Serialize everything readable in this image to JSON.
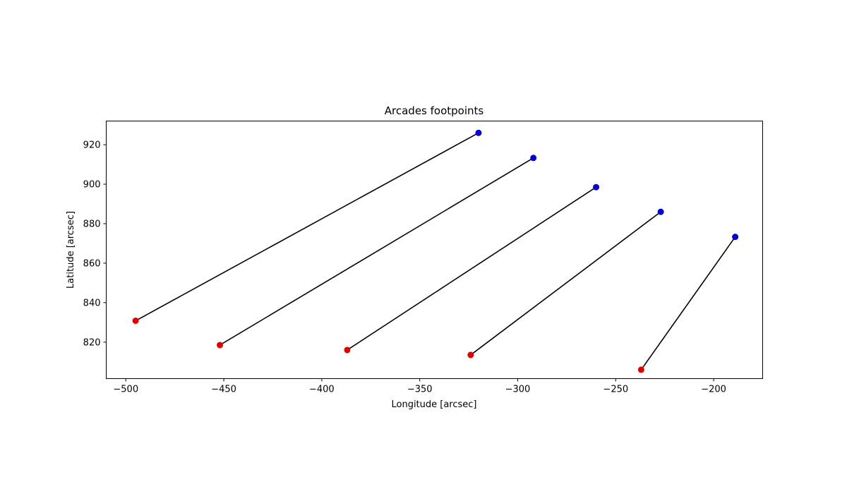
{
  "chart_data": {
    "type": "scatter",
    "title": "Arcades footpoints",
    "xlabel": "Longitude [arcsec]",
    "ylabel": "Latitude [arcsec]",
    "xlim": [
      -510,
      -175
    ],
    "ylim": [
      801.5,
      932
    ],
    "xticks": [
      -500,
      -450,
      -400,
      -350,
      -300,
      -250,
      -200
    ],
    "xtick_labels": [
      "−500",
      "−450",
      "−400",
      "−350",
      "−300",
      "−250",
      "−200"
    ],
    "yticks": [
      820,
      840,
      860,
      880,
      900,
      920
    ],
    "ytick_labels": [
      "820",
      "840",
      "860",
      "880",
      "900",
      "920"
    ],
    "grid": false,
    "colors": {
      "start": "#e00000",
      "end": "#0000d0",
      "line": "#000000"
    },
    "arcades": [
      {
        "start": [
          -495,
          830.8
        ],
        "end": [
          -320,
          926.0
        ]
      },
      {
        "start": [
          -452,
          818.5
        ],
        "end": [
          -292,
          913.3
        ]
      },
      {
        "start": [
          -387,
          816.0
        ],
        "end": [
          -260,
          898.5
        ]
      },
      {
        "start": [
          -324,
          813.5
        ],
        "end": [
          -227,
          886.0
        ]
      },
      {
        "start": [
          -237,
          806.0
        ],
        "end": [
          -189,
          873.3
        ]
      }
    ]
  }
}
